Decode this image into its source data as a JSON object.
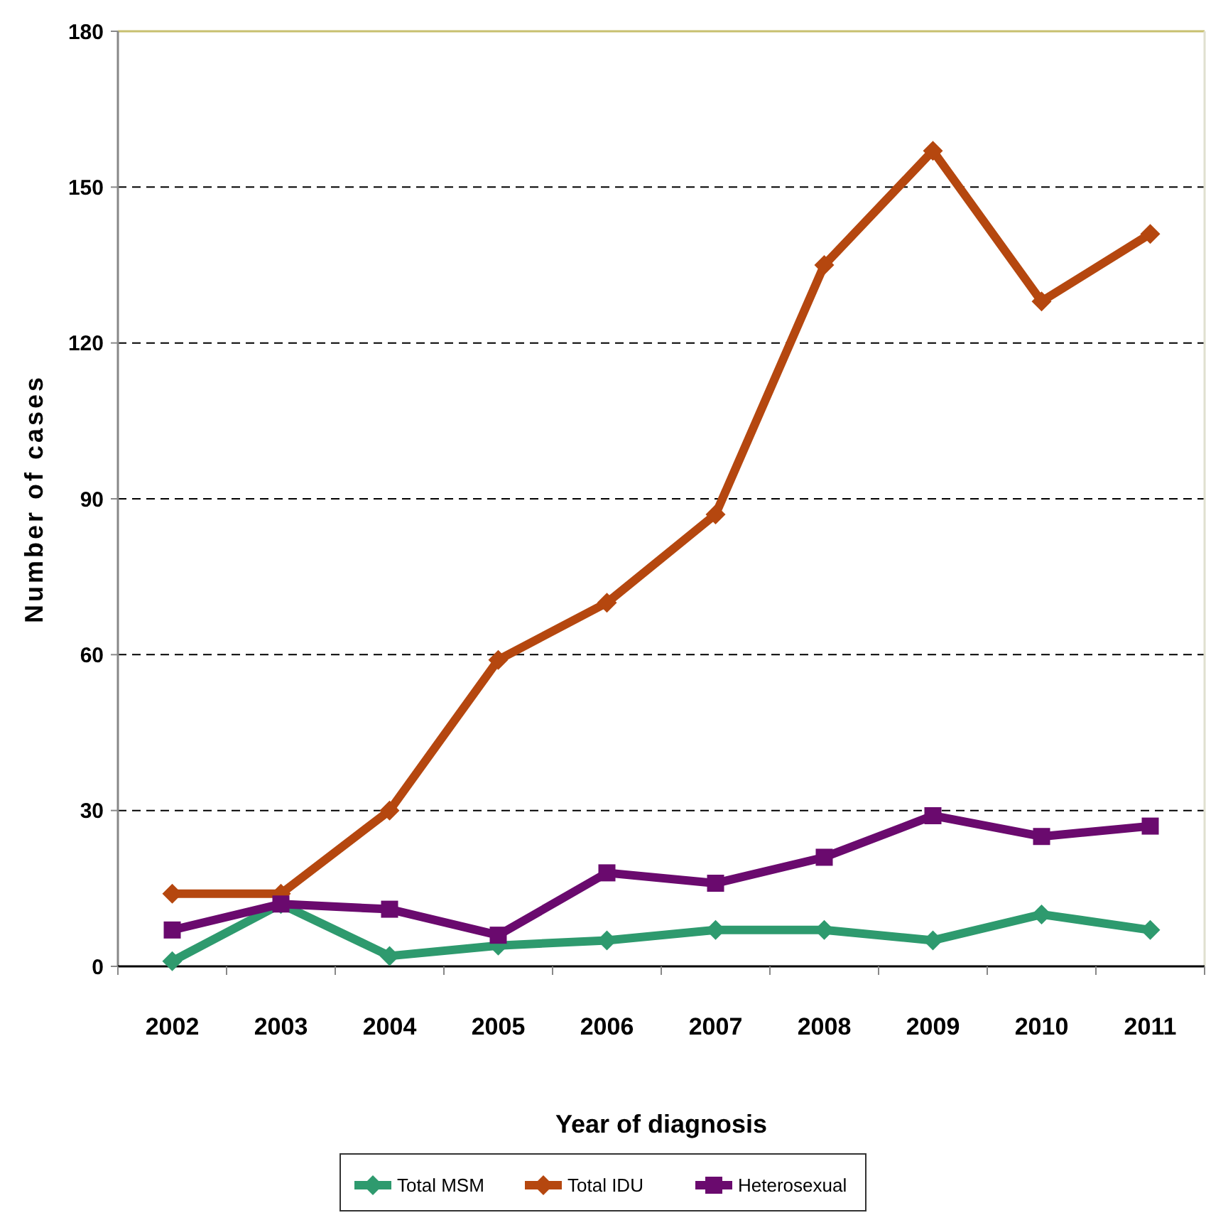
{
  "chart_data": {
    "type": "line",
    "xlabel": "Year of diagnosis",
    "ylabel": "Number of cases",
    "categories": [
      "2002",
      "2003",
      "2004",
      "2005",
      "2006",
      "2007",
      "2008",
      "2009",
      "2010",
      "2011"
    ],
    "series": [
      {
        "name": "Total MSM",
        "color": "#2e9a6e",
        "marker": "diamond",
        "values": [
          1,
          12,
          2,
          4,
          5,
          7,
          7,
          5,
          10,
          7
        ]
      },
      {
        "name": "Total IDU",
        "color": "#b5470f",
        "marker": "diamond",
        "values": [
          14,
          14,
          30,
          59,
          70,
          87,
          135,
          157,
          128,
          141
        ]
      },
      {
        "name": "Heterosexual",
        "color": "#6a0a6e",
        "marker": "square",
        "values": [
          7,
          12,
          11,
          6,
          18,
          16,
          21,
          29,
          25,
          27
        ]
      }
    ],
    "ylim": [
      0,
      180
    ],
    "yticks": [
      0,
      30,
      60,
      90,
      120,
      150,
      180
    ],
    "grid": "y",
    "line_style": "solid",
    "legend": "bottom"
  }
}
